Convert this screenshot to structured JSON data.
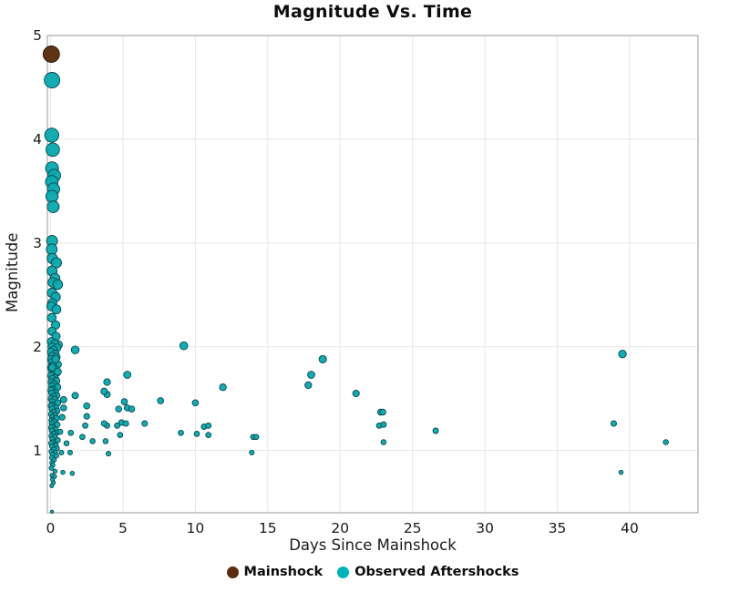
{
  "title": "Magnitude Vs. Time",
  "chart_data": {
    "type": "scatter",
    "title": "Magnitude Vs. Time",
    "xlabel": "Days Since Mainshock",
    "ylabel": "Magnitude",
    "xlim": [
      -0.22,
      44.72
    ],
    "ylim": [
      0.4,
      5.0
    ],
    "x_ticks": [
      0,
      5,
      10,
      15,
      20,
      25,
      30,
      35,
      40
    ],
    "y_ticks": [
      1,
      2,
      3,
      4,
      5
    ],
    "grid": true,
    "legend_position": "bottom",
    "panel_border_color": "#a9a9a9",
    "grid_color": "#e7e7e7",
    "series": [
      {
        "name": "Mainshock",
        "color": "#5a2d0c",
        "edge_color": "#2a1505",
        "points": [
          [
            0.05,
            4.82
          ]
        ]
      },
      {
        "name": "Observed Aftershocks",
        "color": "#0ca8ae",
        "edge_color": "#07474c",
        "points": [
          [
            0.1,
            4.57
          ],
          [
            0.08,
            4.04
          ],
          [
            0.15,
            3.9
          ],
          [
            0.1,
            3.72
          ],
          [
            0.25,
            3.65
          ],
          [
            0.08,
            3.59
          ],
          [
            0.2,
            3.52
          ],
          [
            0.1,
            3.45
          ],
          [
            0.18,
            3.35
          ],
          [
            0.1,
            3.02
          ],
          [
            0.08,
            2.94
          ],
          [
            0.12,
            2.85
          ],
          [
            0.4,
            2.81
          ],
          [
            0.1,
            2.73
          ],
          [
            0.3,
            2.66
          ],
          [
            0.15,
            2.62
          ],
          [
            0.5,
            2.6
          ],
          [
            0.1,
            2.52
          ],
          [
            0.35,
            2.48
          ],
          [
            0.12,
            2.42
          ],
          [
            0.05,
            2.39
          ],
          [
            0.4,
            2.36
          ],
          [
            0.08,
            2.28
          ],
          [
            0.35,
            2.21
          ],
          [
            0.1,
            2.15
          ],
          [
            0.38,
            2.1
          ],
          [
            0.55,
            2.02
          ],
          [
            0.1,
            1.93
          ],
          [
            0.05,
            2.05
          ],
          [
            0.3,
            2.03
          ],
          [
            0.1,
            2.0
          ],
          [
            0.45,
            1.99
          ],
          [
            0.2,
            1.97
          ],
          [
            0.05,
            1.95
          ],
          [
            0.33,
            1.93
          ],
          [
            0.12,
            1.91
          ],
          [
            0.4,
            1.9
          ],
          [
            0.06,
            1.88
          ],
          [
            0.25,
            1.86
          ],
          [
            0.1,
            1.85
          ],
          [
            0.5,
            1.83
          ],
          [
            0.15,
            1.82
          ],
          [
            0.05,
            1.8
          ],
          [
            0.35,
            1.78
          ],
          [
            0.1,
            1.77
          ],
          [
            0.45,
            1.75
          ],
          [
            0.2,
            1.74
          ],
          [
            0.05,
            1.72
          ],
          [
            0.3,
            1.7
          ],
          [
            0.12,
            1.69
          ],
          [
            0.4,
            1.67
          ],
          [
            0.07,
            1.66
          ],
          [
            0.22,
            1.64
          ],
          [
            0.1,
            1.62
          ],
          [
            0.48,
            1.61
          ],
          [
            0.15,
            1.59
          ],
          [
            0.05,
            1.58
          ],
          [
            0.33,
            1.56
          ],
          [
            0.1,
            1.55
          ],
          [
            0.42,
            1.53
          ],
          [
            0.2,
            1.52
          ],
          [
            0.06,
            1.5
          ],
          [
            0.28,
            1.49
          ],
          [
            0.12,
            1.47
          ],
          [
            0.5,
            1.46
          ],
          [
            0.16,
            1.44
          ],
          [
            0.05,
            1.43
          ],
          [
            0.36,
            1.41
          ],
          [
            0.1,
            1.4
          ],
          [
            0.44,
            1.38
          ],
          [
            0.2,
            1.37
          ],
          [
            0.06,
            1.35
          ],
          [
            0.3,
            1.34
          ],
          [
            0.13,
            1.32
          ],
          [
            0.4,
            1.31
          ],
          [
            0.08,
            1.29
          ],
          [
            0.24,
            1.28
          ],
          [
            0.1,
            1.26
          ],
          [
            0.46,
            1.25
          ],
          [
            0.15,
            1.23
          ],
          [
            0.05,
            1.22
          ],
          [
            0.34,
            1.2
          ],
          [
            0.1,
            1.19
          ],
          [
            0.42,
            1.17
          ],
          [
            0.2,
            1.16
          ],
          [
            0.07,
            1.14
          ],
          [
            0.28,
            1.13
          ],
          [
            0.12,
            1.11
          ],
          [
            0.5,
            1.1
          ],
          [
            0.16,
            1.08
          ],
          [
            0.05,
            1.07
          ],
          [
            0.36,
            1.05
          ],
          [
            0.1,
            1.04
          ],
          [
            0.44,
            1.02
          ],
          [
            0.2,
            1.01
          ],
          [
            0.06,
            0.99
          ],
          [
            0.3,
            0.98
          ],
          [
            0.13,
            0.96
          ],
          [
            0.4,
            0.95
          ],
          [
            0.08,
            0.93
          ],
          [
            0.24,
            0.91
          ],
          [
            0.1,
            0.88
          ],
          [
            0.15,
            0.86
          ],
          [
            0.05,
            0.83
          ],
          [
            0.3,
            0.8
          ],
          [
            0.1,
            0.76
          ],
          [
            0.28,
            0.75
          ],
          [
            0.14,
            0.72
          ],
          [
            0.2,
            0.69
          ],
          [
            0.08,
            0.66
          ],
          [
            1.7,
            1.97
          ],
          [
            0.35,
            1.88
          ],
          [
            0.12,
            1.8
          ],
          [
            0.5,
            1.76
          ],
          [
            0.9,
            1.49
          ],
          [
            1.7,
            1.53
          ],
          [
            3.9,
            1.54
          ],
          [
            2.5,
            1.43
          ],
          [
            0.9,
            1.41
          ],
          [
            4.7,
            1.4
          ],
          [
            5.3,
            1.41
          ],
          [
            2.5,
            1.33
          ],
          [
            3.9,
            1.24
          ],
          [
            4.6,
            1.24
          ],
          [
            6.5,
            1.26
          ],
          [
            4.8,
            1.15
          ],
          [
            3.8,
            1.09
          ],
          [
            1.4,
            1.17
          ],
          [
            0.75,
            0.98
          ],
          [
            4.0,
            0.97
          ],
          [
            0.85,
            0.79
          ],
          [
            1.5,
            0.78
          ],
          [
            0.66,
            1.18
          ],
          [
            2.2,
            1.13
          ],
          [
            2.9,
            1.09
          ],
          [
            1.1,
            1.07
          ],
          [
            1.35,
            0.98
          ],
          [
            5.3,
            1.73
          ],
          [
            3.9,
            1.66
          ],
          [
            3.7,
            1.57
          ],
          [
            0.8,
            1.32
          ],
          [
            5.1,
            1.47
          ],
          [
            5.6,
            1.4
          ],
          [
            4.9,
            1.27
          ],
          [
            7.6,
            1.48
          ],
          [
            3.7,
            1.26
          ],
          [
            5.2,
            1.26
          ],
          [
            2.4,
            1.24
          ],
          [
            9.2,
            2.01
          ],
          [
            18.8,
            1.88
          ],
          [
            18.0,
            1.73
          ],
          [
            17.8,
            1.63
          ],
          [
            11.9,
            1.61
          ],
          [
            21.1,
            1.55
          ],
          [
            10.0,
            1.46
          ],
          [
            22.8,
            1.37
          ],
          [
            22.95,
            1.37
          ],
          [
            10.6,
            1.23
          ],
          [
            10.9,
            1.24
          ],
          [
            22.7,
            1.24
          ],
          [
            23.0,
            1.25
          ],
          [
            9.0,
            1.17
          ],
          [
            10.1,
            1.16
          ],
          [
            10.9,
            1.15
          ],
          [
            14.0,
            1.13
          ],
          [
            14.2,
            1.13
          ],
          [
            23.0,
            1.08
          ],
          [
            13.9,
            0.98
          ],
          [
            26.6,
            1.19
          ],
          [
            39.5,
            1.93
          ],
          [
            38.9,
            1.26
          ],
          [
            42.5,
            1.08
          ],
          [
            39.4,
            0.79
          ],
          [
            0.1,
            0.41
          ]
        ]
      }
    ]
  }
}
